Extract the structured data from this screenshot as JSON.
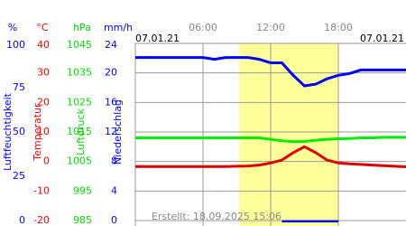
{
  "chart_data": {
    "type": "line",
    "x": [
      0,
      1,
      2,
      3,
      4,
      5,
      6,
      7,
      8,
      9,
      10,
      11,
      12,
      13,
      14,
      15,
      16,
      17,
      18,
      19,
      20,
      21,
      22,
      23,
      24
    ],
    "xlim": [
      0,
      24
    ],
    "xticks": [
      {
        "value": 6,
        "label": "06:00"
      },
      {
        "value": 12,
        "label": "12:00"
      },
      {
        "value": 18,
        "label": "18:00"
      }
    ],
    "date_left": "07.01.21",
    "date_right": "07.01.21",
    "footer": "Erstellt: 18.09.2025 15:06",
    "shaded_region": {
      "xrange": [
        9.2,
        18
      ],
      "color": "#ffff99"
    },
    "grid": true,
    "y_axes": [
      {
        "unit": "%",
        "label": "Luftfeuchtigkeit",
        "color": "#0000ff",
        "lim": [
          0,
          100
        ],
        "ticks": [
          0,
          25,
          50,
          75,
          100
        ]
      },
      {
        "unit": "°C",
        "label": "Temperatur",
        "color": "#ff0000",
        "lim": [
          -20,
          40
        ],
        "ticks": [
          -20,
          -10,
          0,
          10,
          20,
          30,
          40
        ]
      },
      {
        "unit": "hPa",
        "label": "Luftdruck",
        "color": "#00dd00",
        "lim": [
          985,
          1045
        ],
        "ticks": [
          985,
          995,
          1005,
          1015,
          1025,
          1035,
          1045
        ]
      },
      {
        "unit": "mm/h",
        "label": "Niederschlag",
        "color": "#0000ff",
        "lim": [
          0,
          24
        ],
        "ticks": [
          0,
          4,
          8,
          12,
          16,
          20,
          24
        ]
      }
    ],
    "series": [
      {
        "axis": 2,
        "color": "#00ee00",
        "values": [
          1013,
          1013,
          1013,
          1013,
          1013,
          1013,
          1013,
          1013,
          1013,
          1013,
          1013,
          1013,
          1012.5,
          1012,
          1011.7,
          1011.8,
          1012.2,
          1012.5,
          1012.7,
          1012.8,
          1013,
          1013,
          1013.2,
          1013.2,
          1013.2
        ]
      },
      {
        "axis": 1,
        "color": "#dd0000",
        "values": [
          -1.7,
          -1.7,
          -1.7,
          -1.7,
          -1.7,
          -1.7,
          -1.7,
          -1.7,
          -1.7,
          -1.6,
          -1.5,
          -1.2,
          -0.5,
          0.5,
          3,
          5,
          3,
          0.5,
          -0.5,
          -0.8,
          -1,
          -1.2,
          -1.4,
          -1.6,
          -1.8
        ]
      },
      {
        "axis": 0,
        "color": "#0000ff",
        "values": [
          92,
          92,
          92,
          92,
          92,
          92,
          92,
          91,
          92,
          92,
          92,
          91,
          89,
          89,
          82,
          76,
          77,
          80,
          82,
          83,
          85,
          85,
          85,
          85,
          85
        ]
      },
      {
        "axis": 3,
        "color": "#0000ff",
        "bars": true,
        "values": [
          0,
          0,
          0,
          0,
          0,
          0,
          0,
          0,
          0,
          0,
          0,
          0,
          0,
          0.3,
          0.3,
          0.3,
          0.3,
          0.3,
          0,
          0,
          0,
          0,
          0,
          0,
          0
        ]
      }
    ]
  }
}
